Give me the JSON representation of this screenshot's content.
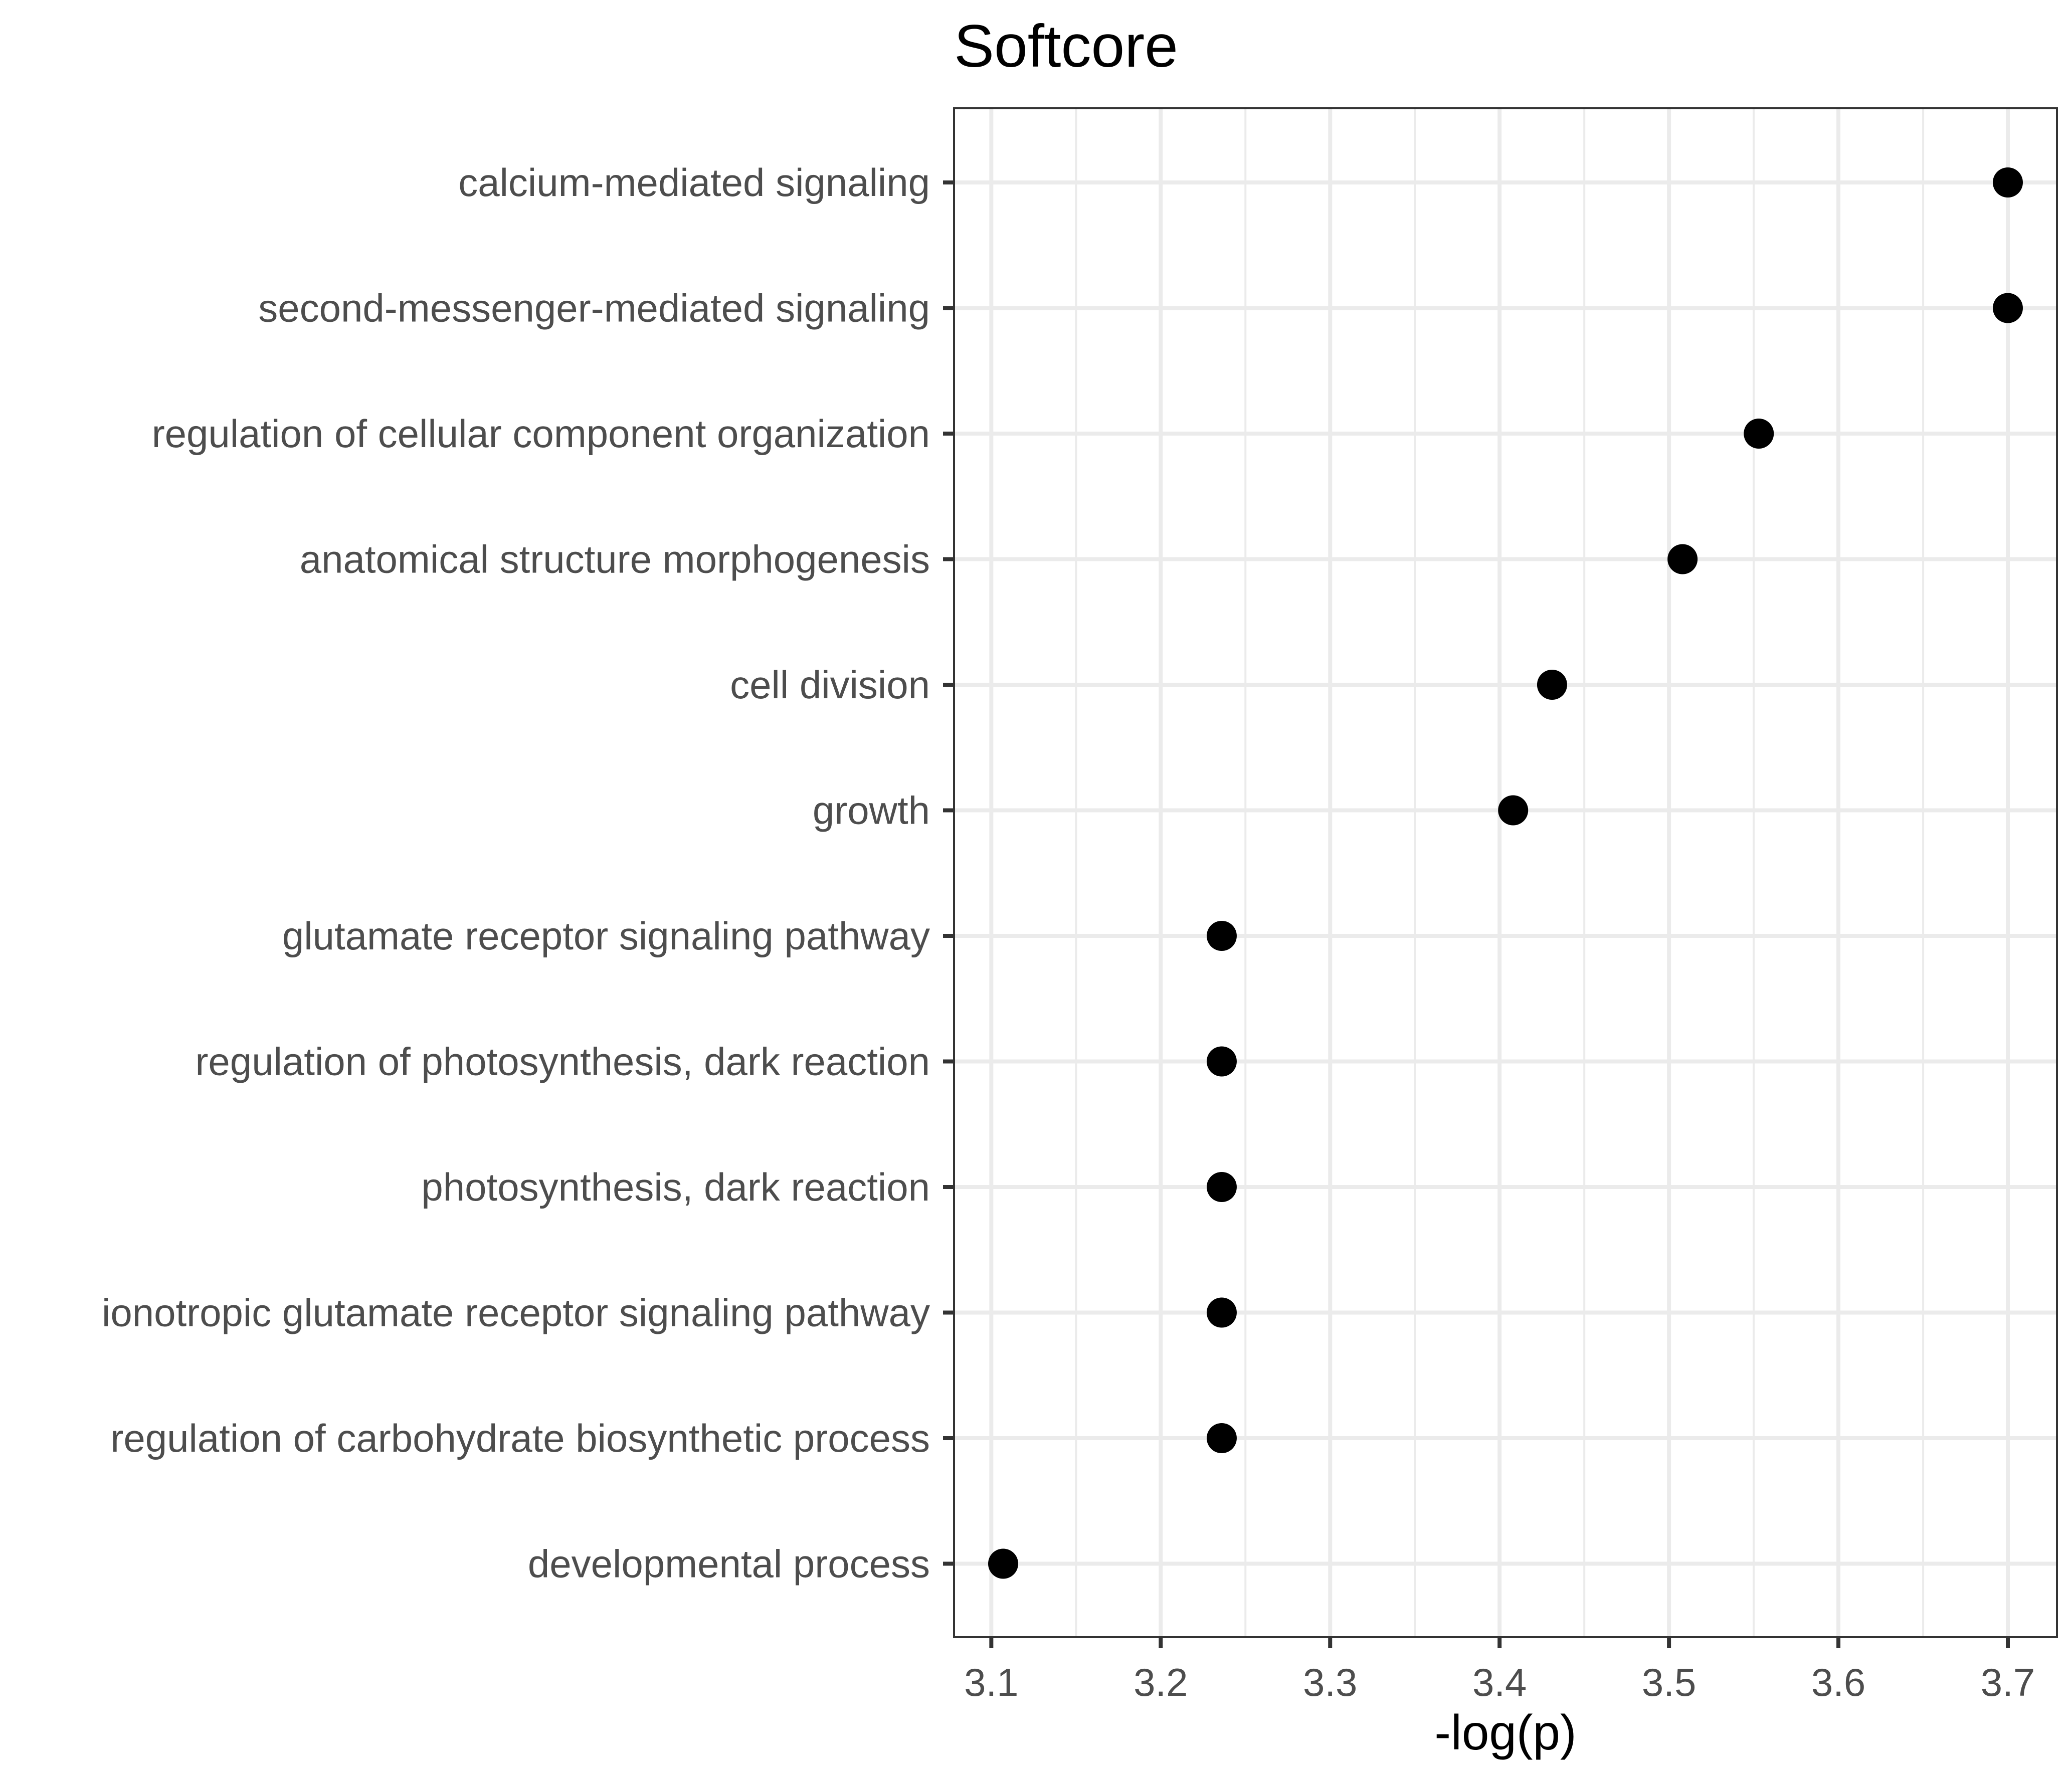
{
  "chart_data": {
    "type": "scatter",
    "title": "Softcore",
    "xlabel": "-log(p)",
    "ylabel": "",
    "xlim": [
      3.078,
      3.729
    ],
    "x_ticks": [
      "3.1",
      "3.2",
      "3.3",
      "3.4",
      "3.5",
      "3.6",
      "3.7"
    ],
    "grid": true,
    "categories": [
      "calcium-mediated signaling",
      "second-messenger-mediated signaling",
      "regulation of cellular component organization",
      "anatomical structure morphogenesis",
      "cell division",
      "growth",
      "glutamate receptor signaling pathway",
      "regulation of photosynthesis, dark reaction",
      "photosynthesis, dark reaction",
      "ionotropic glutamate receptor signaling pathway",
      "regulation of carbohydrate biosynthetic process",
      "developmental process"
    ],
    "values": [
      3.7,
      3.7,
      3.553,
      3.508,
      3.431,
      3.408,
      3.236,
      3.236,
      3.236,
      3.236,
      3.236,
      3.107
    ]
  }
}
